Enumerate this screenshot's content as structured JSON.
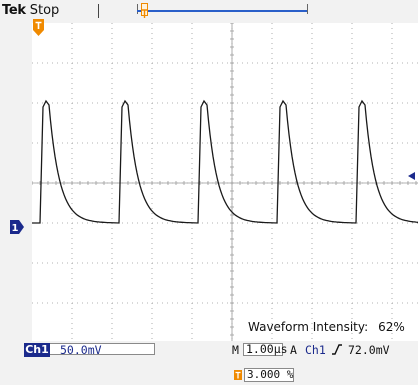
{
  "header": {
    "brand": "Tek",
    "acquisition_state": "Stop"
  },
  "icons": {
    "trigger_position": "trigger-position-T-icon",
    "channel_marker": "channel-1-ground-marker-icon",
    "reference_arrow": "left-arrow-icon",
    "trigger_slope": "rising-edge-icon",
    "record_marker": "record-position-marker-icon"
  },
  "colors": {
    "channel1_blue": "#1b2a8c",
    "trigger_orange": "#f08a00",
    "record_bar": "#2a5fc9",
    "trace": "#1a1a1a"
  },
  "graticule": {
    "channel_marker_label": "1",
    "intensity_label": "Waveform Intensity:",
    "intensity_value": "62%"
  },
  "readouts": {
    "ch1_badge": "Ch1",
    "ch1_scale": "50.0mV",
    "timebase_label": "M",
    "timebase_value": "1.00µs",
    "trigger_mode": "A",
    "trigger_source": "Ch1",
    "trigger_level": "72.0mV",
    "horizontal_position": "3.000 %"
  }
}
